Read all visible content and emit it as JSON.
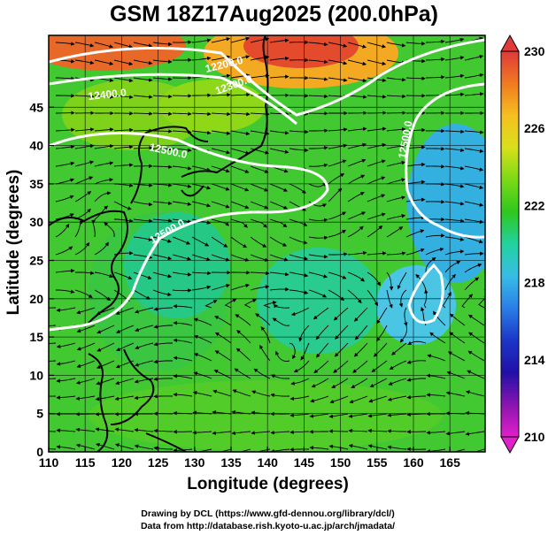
{
  "title": "GSM 18Z17Aug2025 (200.0hPa)",
  "axes": {
    "xlabel": "Longitude (degrees)",
    "ylabel": "Latitude  (degrees)",
    "x_ticks": [
      "110",
      "115",
      "120",
      "125",
      "130",
      "135",
      "140",
      "145",
      "150",
      "155",
      "160",
      "165"
    ],
    "y_ticks": [
      "0",
      "5",
      "10",
      "15",
      "20",
      "25",
      "30",
      "35",
      "40",
      "45"
    ]
  },
  "colorbar": {
    "labels": [
      "230",
      "226",
      "222",
      "218",
      "214",
      "210"
    ],
    "colors": [
      "#e03a3a",
      "#f07a20",
      "#f5c020",
      "#d8e01a",
      "#7ada16",
      "#2ec81e",
      "#22d2a0",
      "#38bce6",
      "#2a7ee6",
      "#1c36c8",
      "#2010a8",
      "#8a14b0",
      "#e020c8"
    ]
  },
  "contour_labels": [
    {
      "text": "12200.0"
    },
    {
      "text": "12300.0"
    },
    {
      "text": "12400.0"
    },
    {
      "text": "12500.0"
    },
    {
      "text": "12500.0"
    },
    {
      "text": "12500.0"
    }
  ],
  "credits": [
    "Drawing by DCL (https://www.gfd-dennou.org/library/dcl/)",
    "Data from http://database.rish.kyoto-u.ac.jp/arch/jmadata/"
  ]
}
